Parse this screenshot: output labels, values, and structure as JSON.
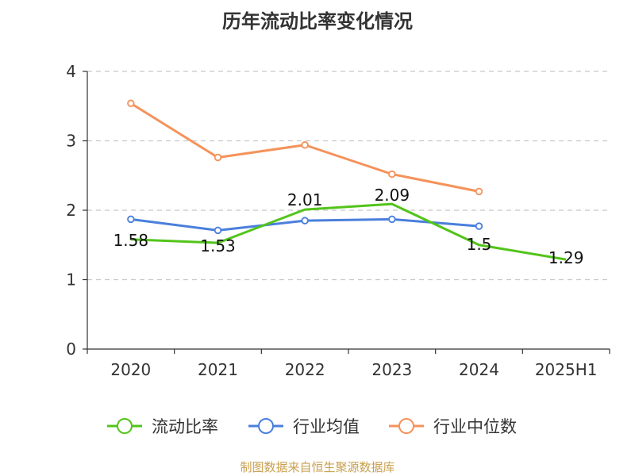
{
  "chart_data": {
    "type": "line",
    "title": "历年流动比率变化情况",
    "categories": [
      "2020",
      "2021",
      "2022",
      "2023",
      "2024",
      "2025H1"
    ],
    "ylim": [
      0,
      4
    ],
    "yticks": [
      "0",
      "1",
      "2",
      "3",
      "4"
    ],
    "grid": true,
    "legend_position": "bottom",
    "series": [
      {
        "name": "流动比率",
        "color": "#52c41a",
        "values": [
          1.58,
          1.53,
          2.01,
          2.09,
          1.5,
          1.29
        ],
        "labels": [
          "1.58",
          "1.53",
          "2.01",
          "2.09",
          "1.5",
          "1.29"
        ]
      },
      {
        "name": "行业均值",
        "color": "#4a7fdc",
        "values": [
          1.87,
          1.71,
          1.85,
          1.87,
          1.77,
          null
        ]
      },
      {
        "name": "行业中位数",
        "color": "#f5925a",
        "values": [
          3.54,
          2.76,
          2.94,
          2.52,
          2.27,
          null
        ]
      }
    ]
  },
  "source_text": "制图数据来自恒生聚源数据库"
}
